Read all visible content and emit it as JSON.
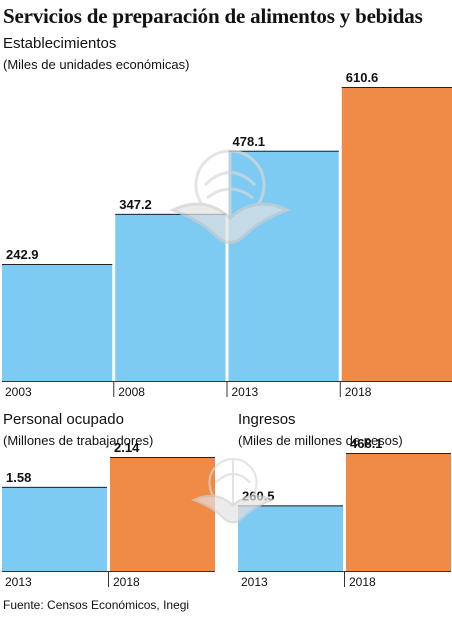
{
  "header": {
    "title": "Servicios de preparación de alimentos y bebidas"
  },
  "colors": {
    "past": "#7dcbf2",
    "latest": "#f08a47",
    "baseline": "#333333",
    "watermark": "#d9d9d9"
  },
  "icons": {
    "watermark": "eagle-seal-icon"
  },
  "chart_data": [
    {
      "type": "bar",
      "title": "Establecimientos",
      "ylabel": "(Miles de unidades económicas)",
      "categories": [
        "2003",
        "2008",
        "2013",
        "2018"
      ],
      "series": [
        {
          "values": [
            242.9,
            347.2,
            478.1,
            610.6
          ]
        }
      ],
      "value_labels": [
        "242.9",
        "347.2",
        "478.1",
        "610.6"
      ],
      "highlight_index": 3,
      "ylim": [
        0,
        610.6
      ]
    },
    {
      "type": "bar",
      "title": "Personal ocupado",
      "ylabel": "(Millones de trabajadores)",
      "categories": [
        "2013",
        "2018"
      ],
      "series": [
        {
          "values": [
            1.58,
            2.14
          ]
        }
      ],
      "value_labels": [
        "1.58",
        "2.14"
      ],
      "highlight_index": 1,
      "ylim": [
        0,
        2.14
      ]
    },
    {
      "type": "bar",
      "title": "Ingresos",
      "ylabel": "(Miles de millones de pesos)",
      "categories": [
        "2013",
        "2018"
      ],
      "series": [
        {
          "values": [
            260.5,
            468.1
          ]
        }
      ],
      "value_labels": [
        "260.5",
        "468.1"
      ],
      "highlight_index": 1,
      "ylim": [
        0,
        468.1
      ]
    }
  ],
  "footer": {
    "source": "Fuente: Censos Económicos, Inegi"
  }
}
